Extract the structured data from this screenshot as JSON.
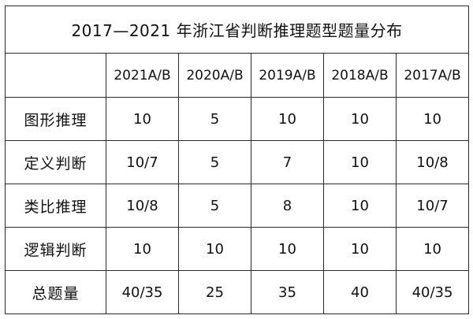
{
  "table": {
    "title": "2017—2021 年浙江省判断推理题型题量分布",
    "corner": "",
    "columns": [
      "2021A/B",
      "2020A/B",
      "2019A/B",
      "2018A/B",
      "2017A/B"
    ],
    "rows": [
      {
        "label": "图形推理",
        "values": [
          "10",
          "5",
          "10",
          "10",
          "10"
        ]
      },
      {
        "label": "定义判断",
        "values": [
          "10/7",
          "5",
          "7",
          "10",
          "10/8"
        ]
      },
      {
        "label": "类比推理",
        "values": [
          "10/8",
          "5",
          "8",
          "10",
          "10/7"
        ]
      },
      {
        "label": "逻辑判断",
        "values": [
          "10",
          "10",
          "10",
          "10",
          "10"
        ]
      },
      {
        "label": "总题量",
        "values": [
          "40/35",
          "25",
          "35",
          "40",
          "40/35"
        ]
      }
    ]
  },
  "colors": {
    "border": "#2a2a2a",
    "text": "#111111",
    "background": "#ffffff"
  }
}
